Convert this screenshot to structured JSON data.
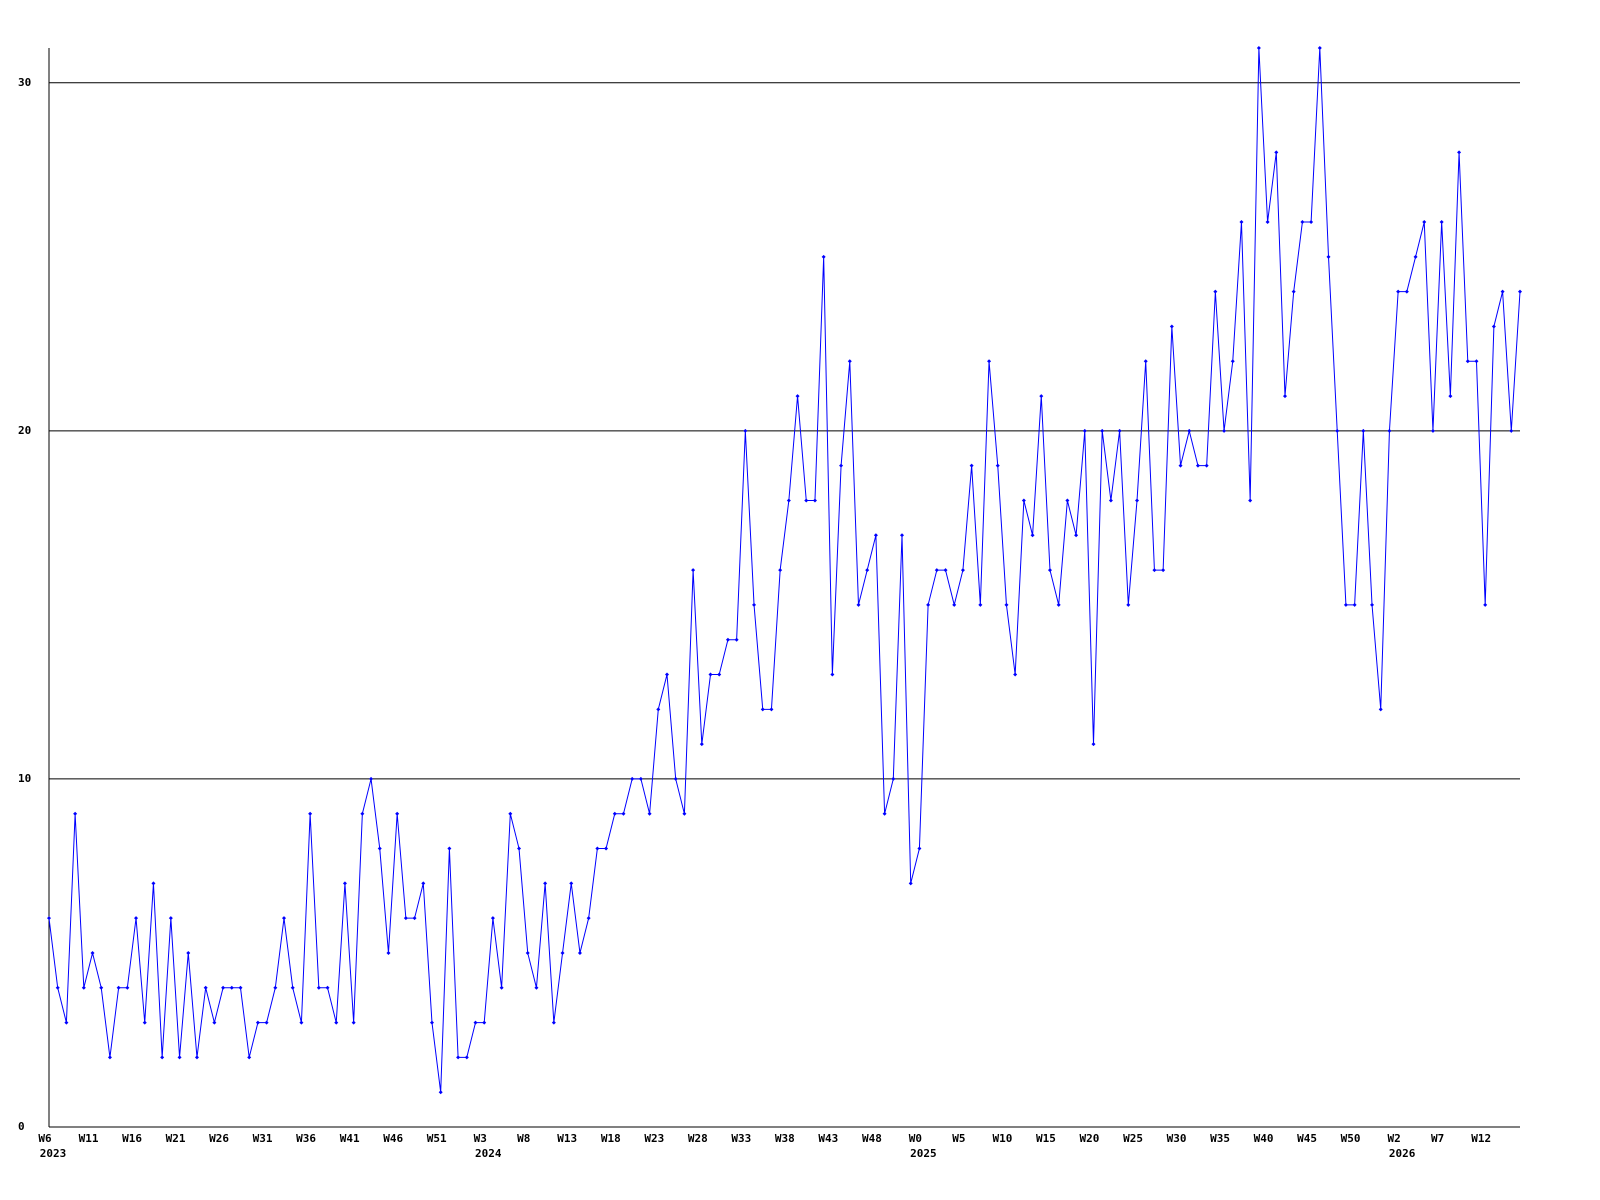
{
  "chart_data": {
    "type": "line",
    "categories": [
      "W6",
      null,
      null,
      null,
      null,
      "W11",
      null,
      null,
      null,
      null,
      "W16",
      null,
      null,
      null,
      null,
      "W21",
      null,
      null,
      null,
      null,
      "W26",
      null,
      null,
      null,
      null,
      "W31",
      null,
      null,
      null,
      null,
      "W36",
      null,
      null,
      null,
      null,
      "W41",
      null,
      null,
      null,
      null,
      "W46",
      null,
      null,
      null,
      null,
      "W51",
      null,
      null,
      null,
      null,
      "W3",
      null,
      null,
      null,
      null,
      "W8",
      null,
      null,
      null,
      null,
      "W13",
      null,
      null,
      null,
      null,
      "W18",
      null,
      null,
      null,
      null,
      "W23",
      null,
      null,
      null,
      null,
      "W28",
      null,
      null,
      null,
      null,
      "W33",
      null,
      null,
      null,
      null,
      "W38",
      null,
      null,
      null,
      null,
      "W43",
      null,
      null,
      null,
      null,
      "W48",
      null,
      null,
      null,
      null,
      "W0",
      null,
      null,
      null,
      null,
      "W5",
      null,
      null,
      null,
      null,
      "W10",
      null,
      null,
      null,
      null,
      "W15",
      null,
      null,
      null,
      null,
      "W20",
      null,
      null,
      null,
      null,
      "W25",
      null,
      null,
      null,
      null,
      "W30",
      null,
      null,
      null,
      null,
      "W35",
      null,
      null,
      null,
      null,
      "W40",
      null,
      null,
      null,
      null,
      "W45",
      null,
      null,
      null,
      null,
      "W50",
      null,
      null,
      null,
      null,
      "W2",
      null,
      null,
      null,
      null,
      "W7",
      null,
      null,
      null,
      null,
      "W12",
      null,
      null,
      null,
      null
    ],
    "years": [
      "2023",
      null,
      null,
      null,
      null,
      null,
      null,
      null,
      null,
      null,
      null,
      null,
      null,
      null,
      null,
      null,
      null,
      null,
      null,
      null,
      null,
      null,
      null,
      null,
      null,
      null,
      null,
      null,
      null,
      null,
      null,
      null,
      null,
      null,
      null,
      null,
      null,
      null,
      null,
      null,
      null,
      null,
      null,
      null,
      null,
      null,
      null,
      null,
      null,
      null,
      "2024",
      null,
      null,
      null,
      null,
      null,
      null,
      null,
      null,
      null,
      null,
      null,
      null,
      null,
      null,
      null,
      null,
      null,
      null,
      null,
      null,
      null,
      null,
      null,
      null,
      null,
      null,
      null,
      null,
      null,
      null,
      null,
      null,
      null,
      null,
      null,
      null,
      null,
      null,
      null,
      null,
      null,
      null,
      null,
      null,
      null,
      null,
      null,
      null,
      null,
      "2025",
      null,
      null,
      null,
      null,
      null,
      null,
      null,
      null,
      null,
      null,
      null,
      null,
      null,
      null,
      null,
      null,
      null,
      null,
      null,
      null,
      null,
      null,
      null,
      null,
      null,
      null,
      null,
      null,
      null,
      null,
      null,
      null,
      null,
      null,
      null,
      null,
      null,
      null,
      null,
      null,
      null,
      null,
      null,
      null,
      null,
      null,
      null,
      null,
      null,
      null,
      null,
      null,
      null,
      null,
      "2026",
      null,
      null,
      null,
      null,
      null,
      null,
      null,
      null,
      null,
      null,
      null,
      null,
      null,
      null
    ],
    "series": [
      {
        "color": "#0000ff",
        "values": [
          6,
          4,
          3,
          9,
          4,
          5,
          4,
          2,
          4,
          4,
          6,
          3,
          7,
          2,
          6,
          2,
          5,
          2,
          4,
          3,
          4,
          4,
          4,
          2,
          3,
          3,
          4,
          6,
          4,
          3,
          9,
          4,
          4,
          3,
          7,
          3,
          9,
          10,
          8,
          5,
          9,
          6,
          6,
          7,
          3,
          1,
          8,
          2,
          2,
          3,
          3,
          6,
          4,
          9,
          8,
          5,
          4,
          7,
          3,
          5,
          7,
          5,
          6,
          8,
          8,
          9,
          9,
          10,
          10,
          9,
          12,
          13,
          10,
          9,
          16,
          11,
          13,
          13,
          14,
          14,
          20,
          15,
          12,
          12,
          16,
          18,
          21,
          18,
          18,
          25,
          13,
          19,
          22,
          15,
          16,
          17,
          9,
          10,
          17,
          7,
          8,
          15,
          16,
          16,
          15,
          16,
          19,
          15,
          22,
          19,
          15,
          13,
          18,
          17,
          21,
          16,
          15,
          18,
          17,
          20,
          11,
          20,
          18,
          20,
          15,
          18,
          22,
          16,
          16,
          23,
          19,
          20,
          19,
          19,
          24,
          20,
          22,
          26,
          18,
          31,
          26,
          28,
          21,
          24,
          26,
          26,
          31,
          25,
          20,
          15,
          15,
          20,
          15,
          12,
          20,
          24,
          24,
          25,
          26,
          20,
          26,
          21,
          28,
          22,
          22,
          15,
          23,
          24,
          20,
          24
        ]
      }
    ],
    "ylim": [
      0,
      31
    ],
    "yticks": [
      0,
      10,
      20,
      30
    ],
    "grid": true
  }
}
